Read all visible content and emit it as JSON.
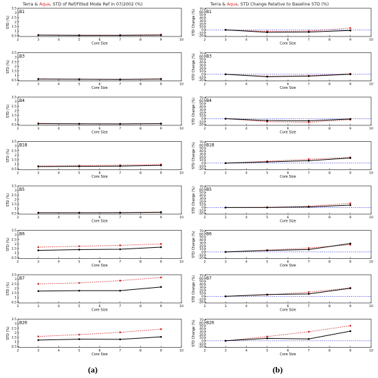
{
  "colors": {
    "terra": "#000000",
    "aqua": "#d62728",
    "axis": "#000000",
    "reference": "#1f1fd6"
  },
  "left_title": {
    "terra": "Terra",
    "amp": " & ",
    "aqua": "Aqua",
    "rest": ", STD of Ref/Fitted Mode Ref in 07/2002 (%)"
  },
  "right_title": {
    "terra": "Terra",
    "amp": " & ",
    "aqua": "Aqua",
    "rest": ",  STD Change Relative to Baseline STD (%)"
  },
  "captions": {
    "left": "(a)",
    "right": "(b)"
  },
  "chart_data": [
    {
      "panel": "left",
      "type": "line",
      "label": "B1",
      "xlabel": "Core Size",
      "ylabel": "STD (%)",
      "xlim": [
        2,
        10
      ],
      "ylim": [
        0.4,
        3.5
      ],
      "xticks": [
        2,
        3,
        4,
        5,
        6,
        7,
        8,
        9,
        10
      ],
      "yticks": [
        0.5,
        1.0,
        1.5,
        2.0,
        2.5,
        3.0,
        3.5
      ],
      "x": [
        3,
        5,
        7,
        9
      ],
      "series": [
        {
          "values": [
            0.55,
            0.52,
            0.52,
            0.55
          ],
          "style": "solid"
        },
        {
          "values": [
            0.57,
            0.55,
            0.56,
            0.6
          ],
          "style": "dotted"
        }
      ]
    },
    {
      "panel": "left",
      "type": "line",
      "label": "B3",
      "xlabel": "Core Size",
      "ylabel": "STD (%)",
      "xlim": [
        2,
        10
      ],
      "ylim": [
        0.4,
        3.5
      ],
      "xticks": [
        2,
        3,
        4,
        5,
        6,
        7,
        8,
        9,
        10
      ],
      "yticks": [
        0.5,
        1.0,
        1.5,
        2.0,
        2.5,
        3.0,
        3.5
      ],
      "x": [
        3,
        5,
        7,
        9
      ],
      "series": [
        {
          "values": [
            0.6,
            0.58,
            0.56,
            0.6
          ],
          "style": "solid"
        },
        {
          "values": [
            0.62,
            0.6,
            0.58,
            0.63
          ],
          "style": "dotted"
        }
      ]
    },
    {
      "panel": "left",
      "type": "line",
      "label": "B4",
      "xlabel": "Core Size",
      "ylabel": "STD (%)",
      "xlim": [
        2,
        10
      ],
      "ylim": [
        0.4,
        3.5
      ],
      "xticks": [
        2,
        3,
        4,
        5,
        6,
        7,
        8,
        9,
        10
      ],
      "yticks": [
        0.5,
        1.0,
        1.5,
        2.0,
        2.5,
        3.0,
        3.5
      ],
      "x": [
        3,
        5,
        7,
        9
      ],
      "series": [
        {
          "values": [
            0.58,
            0.56,
            0.55,
            0.58
          ],
          "style": "solid"
        },
        {
          "values": [
            0.62,
            0.58,
            0.57,
            0.6
          ],
          "style": "dotted"
        }
      ]
    },
    {
      "panel": "left",
      "type": "line",
      "label": "B18",
      "xlabel": "Core Size",
      "ylabel": "STD (%)",
      "xlim": [
        2,
        10
      ],
      "ylim": [
        0.4,
        3.5
      ],
      "xticks": [
        2,
        3,
        4,
        5,
        6,
        7,
        8,
        9,
        10
      ],
      "yticks": [
        0.5,
        1.0,
        1.5,
        2.0,
        2.5,
        3.0,
        3.5
      ],
      "x": [
        3,
        5,
        7,
        9
      ],
      "series": [
        {
          "values": [
            0.75,
            0.77,
            0.8,
            0.88
          ],
          "style": "solid"
        },
        {
          "values": [
            0.8,
            0.85,
            0.9,
            0.98
          ],
          "style": "dotted"
        }
      ]
    },
    {
      "panel": "left",
      "type": "line",
      "label": "B5",
      "xlabel": "Core Size",
      "ylabel": "STD (%)",
      "xlim": [
        2,
        10
      ],
      "ylim": [
        0.4,
        3.5
      ],
      "xticks": [
        2,
        3,
        4,
        5,
        6,
        7,
        8,
        9,
        10
      ],
      "yticks": [
        0.5,
        1.0,
        1.5,
        2.0,
        2.5,
        3.0,
        3.5
      ],
      "x": [
        3,
        5,
        7,
        9
      ],
      "series": [
        {
          "values": [
            0.55,
            0.55,
            0.56,
            0.6
          ],
          "style": "solid"
        },
        {
          "values": [
            0.57,
            0.57,
            0.58,
            0.63
          ],
          "style": "dotted"
        }
      ]
    },
    {
      "panel": "left",
      "type": "line",
      "label": "B6",
      "xlabel": "Core Size",
      "ylabel": "STD (%)",
      "xlim": [
        2,
        10
      ],
      "ylim": [
        0.4,
        3.5
      ],
      "xticks": [
        2,
        3,
        4,
        5,
        6,
        7,
        8,
        9,
        10
      ],
      "yticks": [
        0.5,
        1.0,
        1.5,
        2.0,
        2.5,
        3.0,
        3.5
      ],
      "x": [
        3,
        5,
        7,
        9
      ],
      "series": [
        {
          "values": [
            1.3,
            1.38,
            1.42,
            1.65
          ],
          "style": "solid"
        },
        {
          "values": [
            1.65,
            1.75,
            1.85,
            2.0
          ],
          "style": "dotted"
        }
      ]
    },
    {
      "panel": "left",
      "type": "line",
      "label": "B7",
      "xlabel": "Core Size",
      "ylabel": "STD (%)",
      "xlim": [
        2,
        10
      ],
      "ylim": [
        0.4,
        3.5
      ],
      "xticks": [
        2,
        3,
        4,
        5,
        6,
        7,
        8,
        9,
        10
      ],
      "yticks": [
        0.5,
        1.0,
        1.5,
        2.0,
        2.5,
        3.0,
        3.5
      ],
      "x": [
        3,
        5,
        7,
        9
      ],
      "series": [
        {
          "values": [
            1.7,
            1.75,
            1.75,
            2.15
          ],
          "style": "solid"
        },
        {
          "values": [
            2.5,
            2.6,
            2.85,
            3.2
          ],
          "style": "dotted"
        }
      ]
    },
    {
      "panel": "left",
      "type": "line",
      "label": "B26",
      "xlabel": "Core Size",
      "ylabel": "STD (%)",
      "xlim": [
        2,
        10
      ],
      "ylim": [
        0.4,
        3.5
      ],
      "xticks": [
        2,
        3,
        4,
        5,
        6,
        7,
        8,
        9,
        10
      ],
      "yticks": [
        0.5,
        1.0,
        1.5,
        2.0,
        2.5,
        3.0,
        3.5
      ],
      "x": [
        3,
        5,
        7,
        9
      ],
      "series": [
        {
          "values": [
            1.2,
            1.3,
            1.28,
            1.55
          ],
          "style": "solid"
        },
        {
          "values": [
            1.6,
            1.8,
            2.05,
            2.4
          ],
          "style": "dotted"
        }
      ]
    },
    {
      "panel": "right",
      "type": "line",
      "label": "B1",
      "xlabel": "Core Size",
      "ylabel": "STD Change (%)",
      "xlim": [
        2,
        10
      ],
      "ylim": [
        -22,
        72
      ],
      "xticks": [
        2,
        3,
        4,
        5,
        6,
        7,
        8,
        9,
        10
      ],
      "yticks": [
        -20,
        -10,
        0,
        10,
        20,
        30,
        40,
        50,
        60,
        70
      ],
      "x": [
        3,
        5,
        7,
        9
      ],
      "reference": 0,
      "series": [
        {
          "values": [
            0,
            -8,
            -7,
            -2
          ],
          "style": "solid"
        },
        {
          "values": [
            0,
            -5,
            -4,
            6
          ],
          "style": "dotted"
        }
      ]
    },
    {
      "panel": "right",
      "type": "line",
      "label": "B3",
      "xlabel": "Core Size",
      "ylabel": "STD Change (%)",
      "xlim": [
        2,
        10
      ],
      "ylim": [
        -22,
        72
      ],
      "xticks": [
        2,
        3,
        4,
        5,
        6,
        7,
        8,
        9,
        10
      ],
      "yticks": [
        -20,
        -10,
        0,
        10,
        20,
        30,
        40,
        50,
        60,
        70
      ],
      "x": [
        3,
        5,
        7,
        9
      ],
      "reference": 0,
      "series": [
        {
          "values": [
            0,
            -8,
            -6,
            0
          ],
          "style": "solid"
        },
        {
          "values": [
            0,
            -7,
            -5,
            2
          ],
          "style": "dotted"
        }
      ]
    },
    {
      "panel": "right",
      "type": "line",
      "label": "B4",
      "xlabel": "Core Size",
      "ylabel": "STD Change (%)",
      "xlim": [
        2,
        10
      ],
      "ylim": [
        -22,
        72
      ],
      "xticks": [
        2,
        3,
        4,
        5,
        6,
        7,
        8,
        9,
        10
      ],
      "yticks": [
        -20,
        -10,
        0,
        10,
        20,
        30,
        40,
        50,
        60,
        70
      ],
      "x": [
        3,
        5,
        7,
        9
      ],
      "reference": 0,
      "series": [
        {
          "values": [
            0,
            -6,
            -7,
            -1
          ],
          "style": "solid"
        },
        {
          "values": [
            0,
            -10,
            -12,
            -3
          ],
          "style": "dotted"
        }
      ]
    },
    {
      "panel": "right",
      "type": "line",
      "label": "B18",
      "xlabel": "Core Size",
      "ylabel": "STD Change (%)",
      "xlim": [
        2,
        10
      ],
      "ylim": [
        -22,
        72
      ],
      "xticks": [
        2,
        3,
        4,
        5,
        6,
        7,
        8,
        9,
        10
      ],
      "yticks": [
        -20,
        -10,
        0,
        10,
        20,
        30,
        40,
        50,
        60,
        70
      ],
      "x": [
        3,
        5,
        7,
        9
      ],
      "reference": 0,
      "series": [
        {
          "values": [
            0,
            4,
            8,
            17
          ],
          "style": "solid"
        },
        {
          "values": [
            0,
            6,
            13,
            19
          ],
          "style": "dotted"
        }
      ]
    },
    {
      "panel": "right",
      "type": "line",
      "label": "B5",
      "xlabel": "Core Size",
      "ylabel": "STD Change (%)",
      "xlim": [
        2,
        10
      ],
      "ylim": [
        -22,
        72
      ],
      "xticks": [
        2,
        3,
        4,
        5,
        6,
        7,
        8,
        9,
        10
      ],
      "yticks": [
        -20,
        -10,
        0,
        10,
        20,
        30,
        40,
        50,
        60,
        70
      ],
      "x": [
        3,
        5,
        7,
        9
      ],
      "reference": 0,
      "series": [
        {
          "values": [
            0,
            0,
            2,
            8
          ],
          "style": "solid"
        },
        {
          "values": [
            0,
            1,
            4,
            14
          ],
          "style": "dotted"
        }
      ]
    },
    {
      "panel": "right",
      "type": "line",
      "label": "B6",
      "xlabel": "Core Size",
      "ylabel": "STD Change (%)",
      "xlim": [
        2,
        10
      ],
      "ylim": [
        -22,
        72
      ],
      "xticks": [
        2,
        3,
        4,
        5,
        6,
        7,
        8,
        9,
        10
      ],
      "yticks": [
        -20,
        -10,
        0,
        10,
        20,
        30,
        40,
        50,
        60,
        70
      ],
      "x": [
        3,
        5,
        7,
        9
      ],
      "reference": 0,
      "series": [
        {
          "values": [
            0,
            5,
            8,
            28
          ],
          "style": "solid"
        },
        {
          "values": [
            0,
            6,
            13,
            24
          ],
          "style": "dotted"
        }
      ]
    },
    {
      "panel": "right",
      "type": "line",
      "label": "B7",
      "xlabel": "Core Size",
      "ylabel": "STD Change (%)",
      "xlim": [
        2,
        10
      ],
      "ylim": [
        -22,
        72
      ],
      "xticks": [
        2,
        3,
        4,
        5,
        6,
        7,
        8,
        9,
        10
      ],
      "yticks": [
        -20,
        -10,
        0,
        10,
        20,
        30,
        40,
        50,
        60,
        70
      ],
      "x": [
        3,
        5,
        7,
        9
      ],
      "reference": 0,
      "series": [
        {
          "values": [
            0,
            6,
            8,
            27
          ],
          "style": "solid"
        },
        {
          "values": [
            0,
            5,
            14,
            28
          ],
          "style": "dotted"
        }
      ]
    },
    {
      "panel": "right",
      "type": "line",
      "label": "B26",
      "xlabel": "Core Size",
      "ylabel": "STD Change (%)",
      "xlim": [
        2,
        10
      ],
      "ylim": [
        -22,
        72
      ],
      "xticks": [
        2,
        3,
        4,
        5,
        6,
        7,
        8,
        9,
        10
      ],
      "yticks": [
        -20,
        -10,
        0,
        10,
        20,
        30,
        40,
        50,
        60,
        70
      ],
      "x": [
        3,
        5,
        7,
        9
      ],
      "reference": 0,
      "series": [
        {
          "values": [
            0,
            8,
            6,
            32
          ],
          "style": "solid"
        },
        {
          "values": [
            0,
            14,
            30,
            50
          ],
          "style": "dotted"
        }
      ]
    }
  ]
}
